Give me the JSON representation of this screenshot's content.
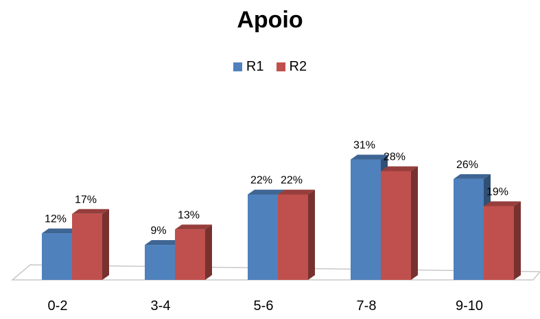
{
  "chart_data": {
    "type": "bar",
    "title": "Apoio",
    "categories": [
      "0-2",
      "3-4",
      "5-6",
      "7-8",
      "9-10"
    ],
    "series": [
      {
        "name": "R1",
        "values": [
          12,
          9,
          22,
          31,
          26
        ],
        "labels": [
          "12%",
          "9%",
          "22%",
          "31%",
          "26%"
        ],
        "color": "#4F81BD"
      },
      {
        "name": "R2",
        "values": [
          17,
          13,
          22,
          28,
          19
        ],
        "labels": [
          "17%",
          "13%",
          "22%",
          "28%",
          "19%"
        ],
        "color": "#C0504D"
      }
    ],
    "ylim": [
      0,
      35
    ],
    "legend_position": "top",
    "grid": false
  }
}
